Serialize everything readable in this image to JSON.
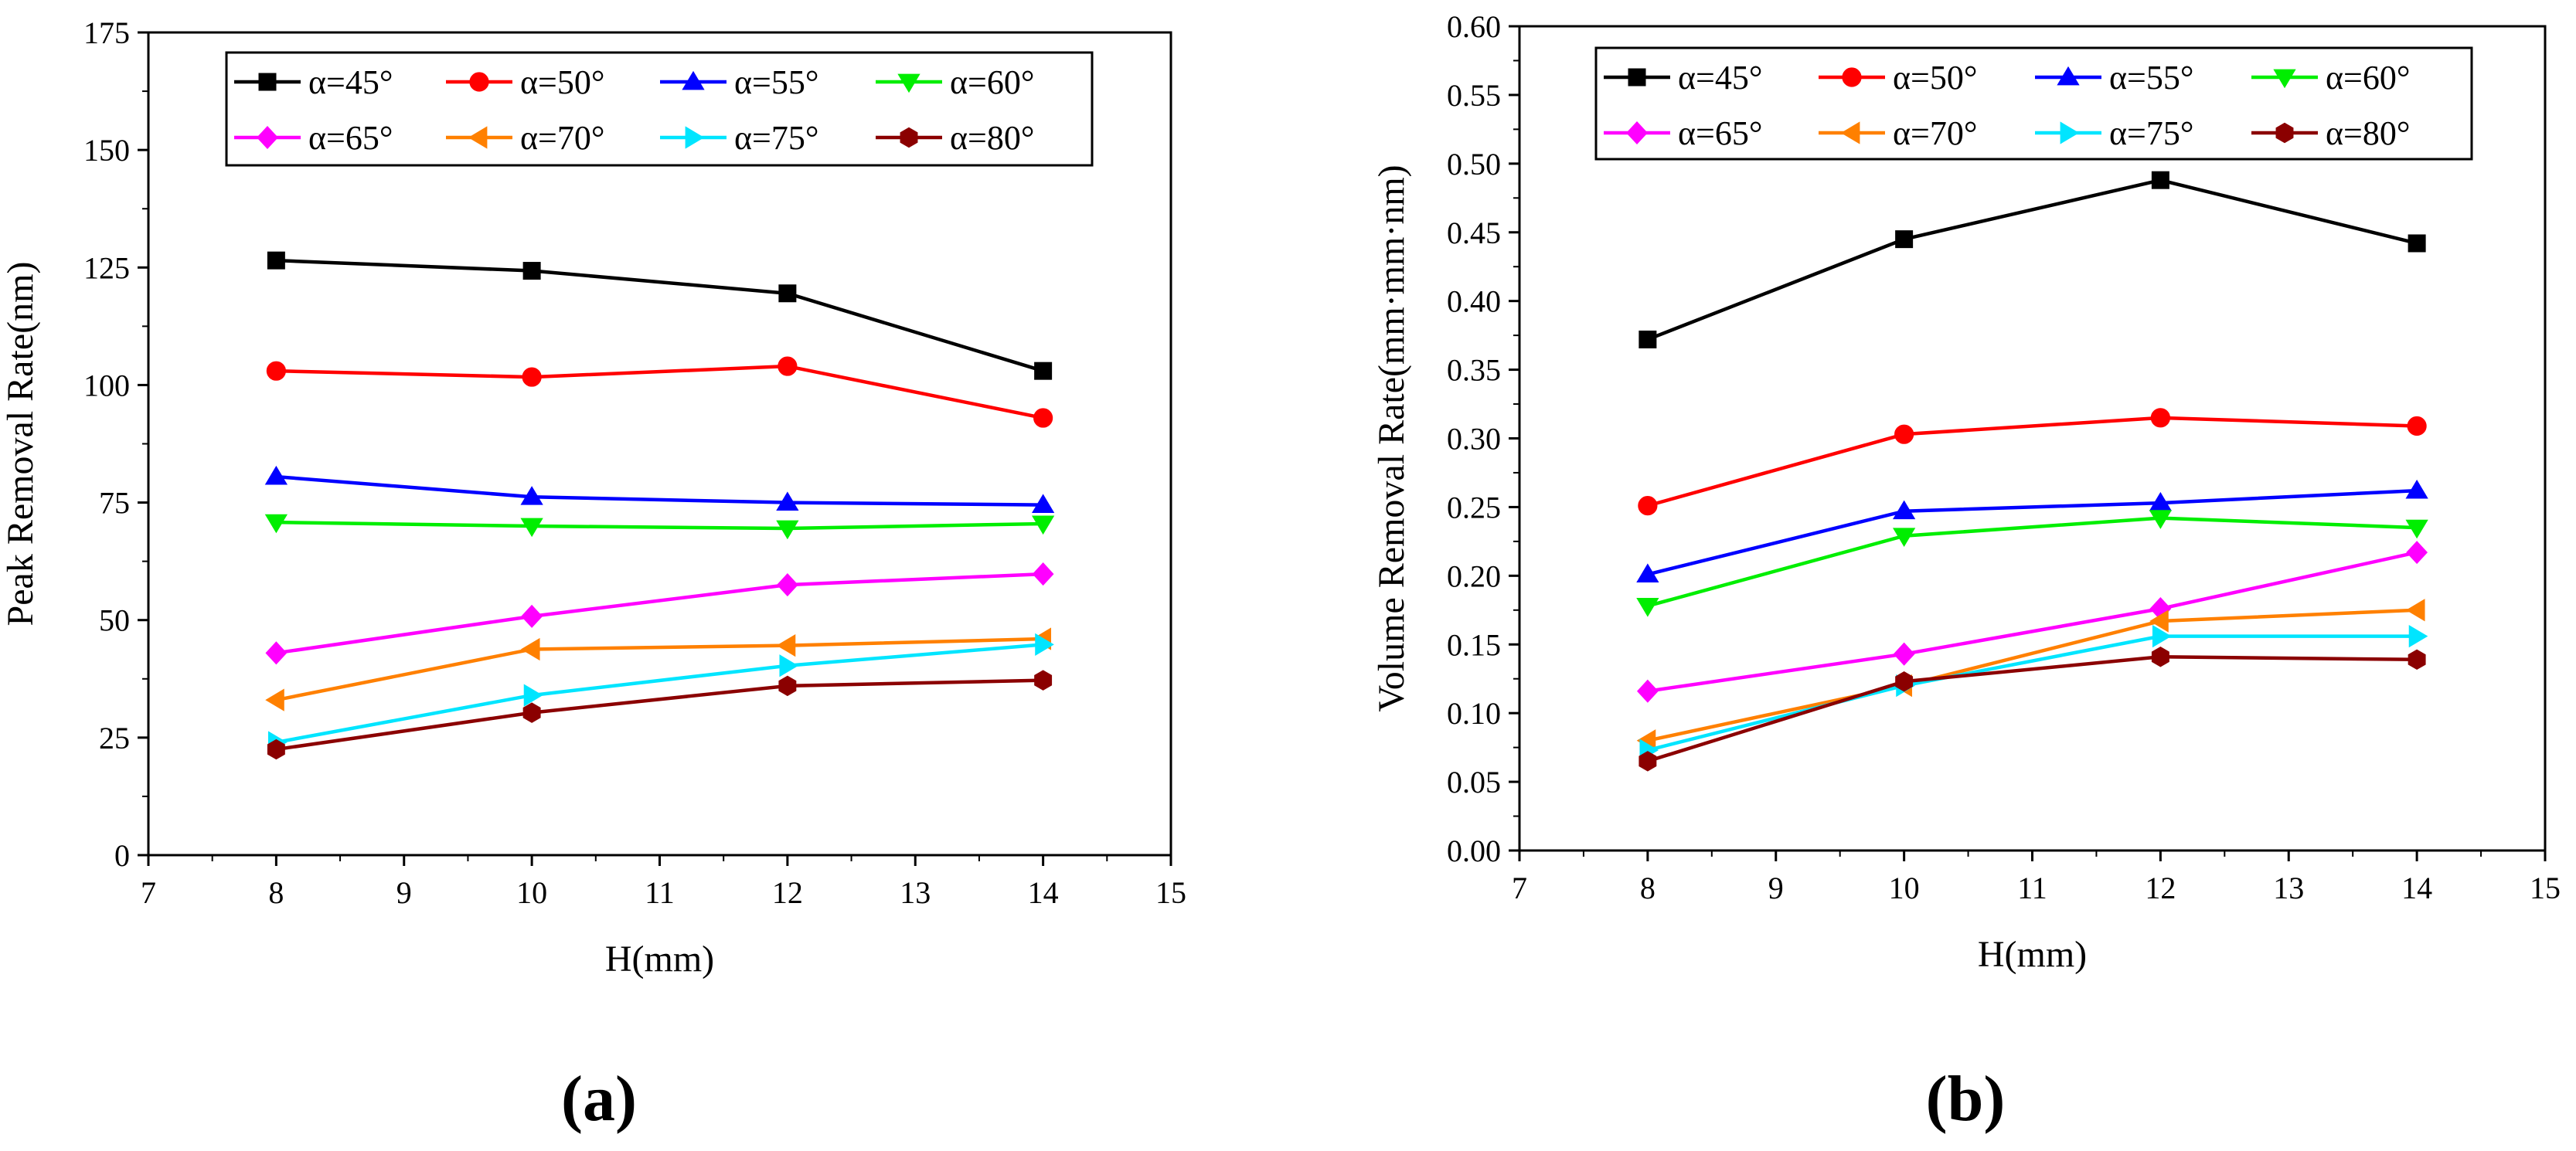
{
  "figure_labels": [
    "(a)",
    "(b)"
  ],
  "chart_data": [
    {
      "type": "line",
      "panel": "(a)",
      "title": "",
      "xlabel": "H(mm)",
      "ylabel": "Peak Removal Rate(nm)",
      "xlim": [
        7,
        15
      ],
      "ylim": [
        0,
        175
      ],
      "xticks": [
        7,
        8,
        9,
        10,
        11,
        12,
        13,
        14,
        15
      ],
      "yticks": [
        0,
        25,
        50,
        75,
        100,
        125,
        150,
        175
      ],
      "ytick_labels": [
        "0",
        "25",
        "50",
        "75",
        "100",
        "125",
        "150",
        "175"
      ],
      "legend_position": "top",
      "x": [
        8,
        10,
        12,
        14
      ],
      "series": [
        {
          "name": "α=45°",
          "color": "#000000",
          "marker": "square",
          "values": [
            126.5,
            124.3,
            119.5,
            103.0
          ]
        },
        {
          "name": "α=50°",
          "color": "#ff0000",
          "marker": "circle",
          "values": [
            103.0,
            101.7,
            104.0,
            93.0
          ]
        },
        {
          "name": "α=55°",
          "color": "#0000ff",
          "marker": "triangle-up",
          "values": [
            80.5,
            76.2,
            75.0,
            74.5
          ]
        },
        {
          "name": "α=60°",
          "color": "#00ee00",
          "marker": "triangle-down",
          "values": [
            70.8,
            70.0,
            69.5,
            70.5
          ]
        },
        {
          "name": "α=65°",
          "color": "#ff00ff",
          "marker": "diamond",
          "values": [
            43.0,
            50.8,
            57.5,
            59.8
          ]
        },
        {
          "name": "α=70°",
          "color": "#ff8000",
          "marker": "triangle-left",
          "values": [
            33.0,
            43.8,
            44.6,
            46.0
          ]
        },
        {
          "name": "α=75°",
          "color": "#00e5ff",
          "marker": "triangle-right",
          "values": [
            24.0,
            34.0,
            40.3,
            44.8
          ]
        },
        {
          "name": "α=80°",
          "color": "#8b0000",
          "marker": "hexagon",
          "values": [
            22.5,
            30.3,
            36.0,
            37.2
          ]
        }
      ]
    },
    {
      "type": "line",
      "panel": "(b)",
      "title": "",
      "xlabel": "H(mm)",
      "ylabel": "Volume Removal Rate(mm·mm·nm)",
      "xlim": [
        7,
        15
      ],
      "ylim": [
        0,
        0.6
      ],
      "xticks": [
        7,
        8,
        9,
        10,
        11,
        12,
        13,
        14,
        15
      ],
      "yticks": [
        0,
        0.05,
        0.1,
        0.15,
        0.2,
        0.25,
        0.3,
        0.35,
        0.4,
        0.45,
        0.5,
        0.55,
        0.6
      ],
      "ytick_labels": [
        "0.00",
        "0.05",
        "0.10",
        "0.15",
        "0.20",
        "0.25",
        "0.30",
        "0.35",
        "0.40",
        "0.45",
        "0.50",
        "0.55",
        "0.60"
      ],
      "legend_position": "top",
      "x": [
        8,
        10,
        12,
        14
      ],
      "series": [
        {
          "name": "α=45°",
          "color": "#000000",
          "marker": "square",
          "values": [
            0.372,
            0.445,
            0.488,
            0.442
          ]
        },
        {
          "name": "α=50°",
          "color": "#ff0000",
          "marker": "circle",
          "values": [
            0.251,
            0.303,
            0.315,
            0.309
          ]
        },
        {
          "name": "α=55°",
          "color": "#0000ff",
          "marker": "triangle-up",
          "values": [
            0.201,
            0.247,
            0.253,
            0.262
          ]
        },
        {
          "name": "α=60°",
          "color": "#00ee00",
          "marker": "triangle-down",
          "values": [
            0.178,
            0.229,
            0.242,
            0.235
          ]
        },
        {
          "name": "α=65°",
          "color": "#ff00ff",
          "marker": "diamond",
          "values": [
            0.116,
            0.143,
            0.176,
            0.217
          ]
        },
        {
          "name": "α=70°",
          "color": "#ff8000",
          "marker": "triangle-left",
          "values": [
            0.08,
            0.12,
            0.167,
            0.175
          ]
        },
        {
          "name": "α=75°",
          "color": "#00e5ff",
          "marker": "triangle-right",
          "values": [
            0.073,
            0.12,
            0.156,
            0.156
          ]
        },
        {
          "name": "α=80°",
          "color": "#8b0000",
          "marker": "hexagon",
          "values": [
            0.065,
            0.123,
            0.141,
            0.139
          ]
        }
      ]
    }
  ]
}
